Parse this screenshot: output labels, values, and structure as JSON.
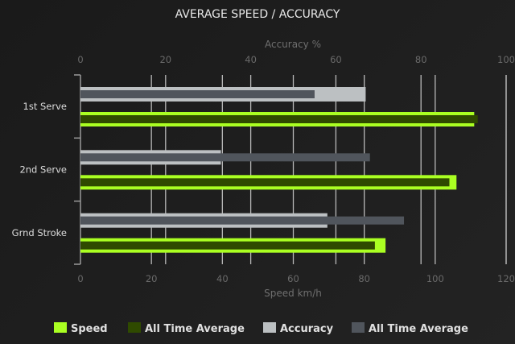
{
  "chart_data": {
    "type": "bar",
    "orientation": "horizontal",
    "title": "AVERAGE SPEED / ACCURACY",
    "categories": [
      "1st Serve",
      "2nd Serve",
      "Grnd Stroke"
    ],
    "x_top": {
      "label": "Accuracy %",
      "range": [
        0,
        100
      ],
      "ticks": [
        0,
        20,
        40,
        60,
        80,
        100
      ]
    },
    "x_bottom": {
      "label": "Speed km/h",
      "range": [
        0,
        120
      ],
      "ticks": [
        0,
        20,
        40,
        60,
        80,
        100,
        120
      ]
    },
    "grid": true,
    "legend_placement": "bottom",
    "series": [
      {
        "name": "Speed",
        "axis": "speed",
        "color": "#aaff22",
        "values": [
          111,
          106,
          86
        ]
      },
      {
        "name": "All Time Average",
        "axis": "speed",
        "color": "#2f4a00",
        "values": [
          112,
          104,
          83
        ]
      },
      {
        "name": "Accuracy",
        "axis": "accuracy",
        "color": "#bcc0c2",
        "values": [
          67,
          33,
          58
        ]
      },
      {
        "name": "All Time Average",
        "axis": "accuracy",
        "color": "#50555c",
        "values": [
          55,
          68,
          76
        ]
      }
    ]
  }
}
